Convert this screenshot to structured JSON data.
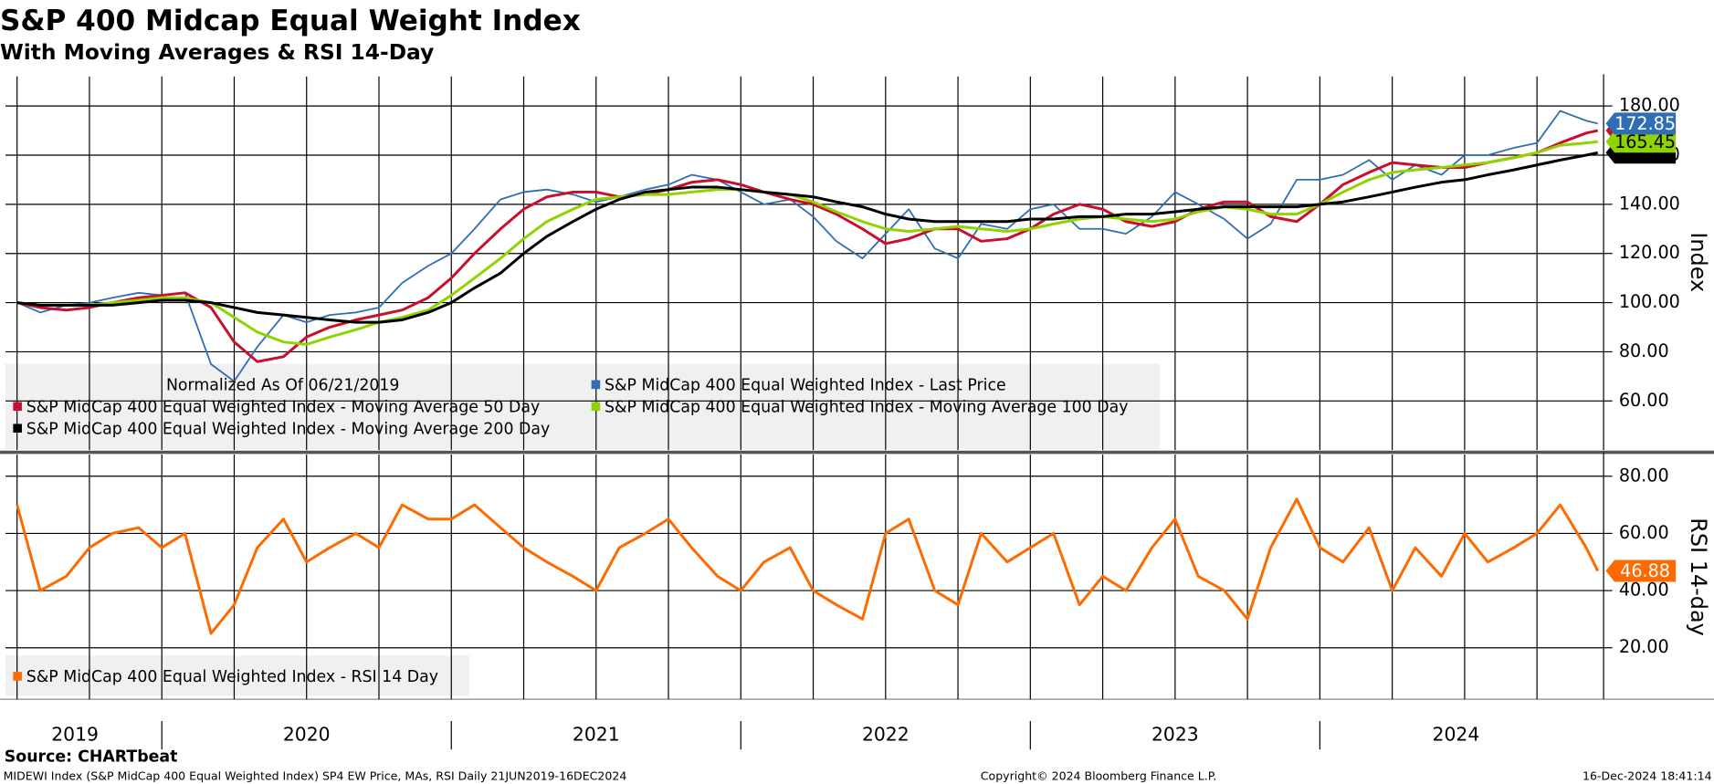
{
  "title": "S&P 400 Midcap Equal Weight Index",
  "subtitle": "With Moving Averages & RSI 14-Day",
  "source": "Source: CHARTbeat",
  "footer": {
    "left": "MIDEWI Index (S&P MidCap 400 Equal Weighted Index) SP4 EW Price, MAs, RSI  Daily 21JUN2019-16DEC2024",
    "center": "Copyright© 2024 Bloomberg Finance L.P.",
    "right": "16-Dec-2024 18:41:14"
  },
  "chart_data": [
    {
      "type": "line",
      "note": "Normalized As Of 06/21/2019",
      "y_label": "Index",
      "x": [
        2019.5,
        2019.58,
        2019.67,
        2019.75,
        2019.83,
        2019.92,
        2020,
        2020.08,
        2020.17,
        2020.25,
        2020.33,
        2020.42,
        2020.5,
        2020.58,
        2020.67,
        2020.75,
        2020.83,
        2020.92,
        2021,
        2021.08,
        2021.17,
        2021.25,
        2021.33,
        2021.42,
        2021.5,
        2021.58,
        2021.67,
        2021.75,
        2021.83,
        2021.92,
        2022,
        2022.08,
        2022.17,
        2022.25,
        2022.33,
        2022.42,
        2022.5,
        2022.58,
        2022.67,
        2022.75,
        2022.83,
        2022.92,
        2023,
        2023.08,
        2023.17,
        2023.25,
        2023.33,
        2023.42,
        2023.5,
        2023.58,
        2023.67,
        2023.75,
        2023.83,
        2023.92,
        2024,
        2024.08,
        2024.17,
        2024.25,
        2024.33,
        2024.42,
        2024.5,
        2024.58,
        2024.67,
        2024.75,
        2024.83,
        2024.92,
        2024.96
      ],
      "xlim": [
        2019.46,
        2024.98
      ],
      "xgrid": [
        2019.5,
        2019.75,
        2020,
        2020.25,
        2020.5,
        2020.75,
        2021,
        2021.25,
        2021.5,
        2021.75,
        2022,
        2022.25,
        2022.5,
        2022.75,
        2023,
        2023.25,
        2023.5,
        2023.75,
        2024,
        2024.25,
        2024.5,
        2024.75
      ],
      "ylim": [
        40,
        192
      ],
      "yticks": [
        {
          "value": 60,
          "label": "60.00"
        },
        {
          "value": 80,
          "label": "80.00"
        },
        {
          "value": 100,
          "label": "100.00"
        },
        {
          "value": 120,
          "label": "120.00"
        },
        {
          "value": 140,
          "label": "140.00"
        },
        {
          "value": 160,
          "label": "160.00"
        },
        {
          "value": 180,
          "label": "180.00"
        }
      ],
      "series": [
        {
          "name": "S&P MidCap 400 Equal Weighted Index - Last Price",
          "color": "#2f6eb5",
          "last_label": "172.85",
          "values": [
            100,
            96,
            99,
            100,
            102,
            104,
            103,
            104,
            75,
            68,
            82,
            95,
            92,
            95,
            96,
            98,
            108,
            115,
            120,
            130,
            142,
            145,
            146,
            144,
            141,
            143,
            146,
            148,
            152,
            150,
            145,
            140,
            142,
            135,
            125,
            118,
            128,
            138,
            122,
            118,
            132,
            130,
            138,
            140,
            130,
            130,
            128,
            135,
            145,
            140,
            134,
            126,
            132,
            150,
            150,
            152,
            158,
            150,
            156,
            152,
            160,
            160,
            163,
            165,
            178,
            174,
            172.85
          ]
        },
        {
          "name": "S&P MidCap 400 Equal Weighted Index - Moving Average 50 Day",
          "color": "#c8102e",
          "values": [
            100,
            98,
            97,
            98,
            100,
            102,
            103,
            104,
            98,
            84,
            76,
            78,
            86,
            90,
            93,
            95,
            97,
            102,
            110,
            120,
            130,
            138,
            143,
            145,
            145,
            143,
            144,
            146,
            149,
            150,
            148,
            145,
            142,
            140,
            136,
            130,
            124,
            126,
            130,
            130,
            125,
            126,
            130,
            136,
            140,
            138,
            133,
            131,
            133,
            138,
            141,
            141,
            135,
            133,
            140,
            148,
            153,
            157,
            156,
            155,
            155,
            157,
            159,
            161,
            165,
            169,
            170
          ]
        },
        {
          "name": "S&P MidCap 400 Equal Weighted Index - Moving Average 100 Day",
          "color": "#8fd400",
          "last_label": "165.45",
          "values": [
            100,
            99,
            99,
            99,
            100,
            101,
            102,
            102,
            100,
            94,
            88,
            84,
            83,
            86,
            89,
            92,
            94,
            97,
            103,
            110,
            118,
            126,
            133,
            138,
            142,
            143,
            144,
            144,
            145,
            146,
            146,
            145,
            144,
            141,
            137,
            133,
            130,
            129,
            130,
            131,
            130,
            129,
            130,
            132,
            134,
            135,
            134,
            133,
            134,
            137,
            139,
            138,
            136,
            136,
            140,
            145,
            150,
            153,
            154,
            155,
            156,
            157,
            159,
            161,
            164,
            165,
            165.45
          ]
        },
        {
          "name": "S&P MidCap 400 Equal Weighted Index - Moving Average 200 Day",
          "color": "#000000",
          "values": [
            100,
            99,
            99,
            99,
            99,
            100,
            101,
            101,
            100,
            98,
            96,
            95,
            94,
            93,
            92,
            92,
            93,
            96,
            100,
            106,
            112,
            120,
            127,
            133,
            138,
            142,
            145,
            146,
            147,
            147,
            146,
            145,
            144,
            143,
            141,
            139,
            136,
            134,
            133,
            133,
            133,
            133,
            134,
            134,
            135,
            135,
            136,
            136,
            137,
            138,
            139,
            139,
            139,
            139,
            140,
            141,
            143,
            145,
            147,
            149,
            150,
            152,
            154,
            156,
            158,
            160,
            161
          ]
        }
      ]
    },
    {
      "type": "line",
      "y_label": "RSI 14-day",
      "x": [
        2019.5,
        2019.58,
        2019.67,
        2019.75,
        2019.83,
        2019.92,
        2020,
        2020.08,
        2020.17,
        2020.25,
        2020.33,
        2020.42,
        2020.5,
        2020.58,
        2020.67,
        2020.75,
        2020.83,
        2020.92,
        2021,
        2021.08,
        2021.17,
        2021.25,
        2021.33,
        2021.42,
        2021.5,
        2021.58,
        2021.67,
        2021.75,
        2021.83,
        2021.92,
        2022,
        2022.08,
        2022.17,
        2022.25,
        2022.33,
        2022.42,
        2022.5,
        2022.58,
        2022.67,
        2022.75,
        2022.83,
        2022.92,
        2023,
        2023.08,
        2023.17,
        2023.25,
        2023.33,
        2023.42,
        2023.5,
        2023.58,
        2023.67,
        2023.75,
        2023.83,
        2023.92,
        2024,
        2024.08,
        2024.17,
        2024.25,
        2024.33,
        2024.42,
        2024.5,
        2024.58,
        2024.67,
        2024.75,
        2024.83,
        2024.92,
        2024.96
      ],
      "xlim": [
        2019.46,
        2024.98
      ],
      "xgrid": [
        2019.5,
        2019.75,
        2020,
        2020.25,
        2020.5,
        2020.75,
        2021,
        2021.25,
        2021.5,
        2021.75,
        2022,
        2022.25,
        2022.5,
        2022.75,
        2023,
        2023.25,
        2023.5,
        2023.75,
        2024,
        2024.25,
        2024.5,
        2024.75
      ],
      "xticks": [
        {
          "value": 2019.7,
          "label": "2019"
        },
        {
          "value": 2020.5,
          "label": "2020"
        },
        {
          "value": 2021.5,
          "label": "2021"
        },
        {
          "value": 2022.5,
          "label": "2022"
        },
        {
          "value": 2023.5,
          "label": "2023"
        },
        {
          "value": 2024.47,
          "label": "2024"
        }
      ],
      "ylim": [
        2,
        87.6
      ],
      "yticks": [
        {
          "value": 20,
          "label": "20.00"
        },
        {
          "value": 40,
          "label": "40.00"
        },
        {
          "value": 60,
          "label": "60.00"
        },
        {
          "value": 80,
          "label": "80.00"
        }
      ],
      "series": [
        {
          "name": "S&P MidCap 400 Equal Weighted Index - RSI 14 Day",
          "color": "#ff6a00",
          "last_label": "46.88",
          "values": [
            70,
            40,
            45,
            55,
            60,
            62,
            55,
            60,
            25,
            35,
            55,
            65,
            50,
            55,
            60,
            55,
            70,
            65,
            65,
            70,
            62,
            55,
            50,
            45,
            40,
            55,
            60,
            65,
            55,
            45,
            40,
            50,
            55,
            40,
            35,
            30,
            60,
            65,
            40,
            35,
            60,
            50,
            55,
            60,
            35,
            45,
            40,
            55,
            65,
            45,
            40,
            30,
            55,
            72,
            55,
            50,
            62,
            40,
            55,
            45,
            60,
            50,
            55,
            60,
            70,
            55,
            46.88
          ]
        }
      ]
    }
  ]
}
